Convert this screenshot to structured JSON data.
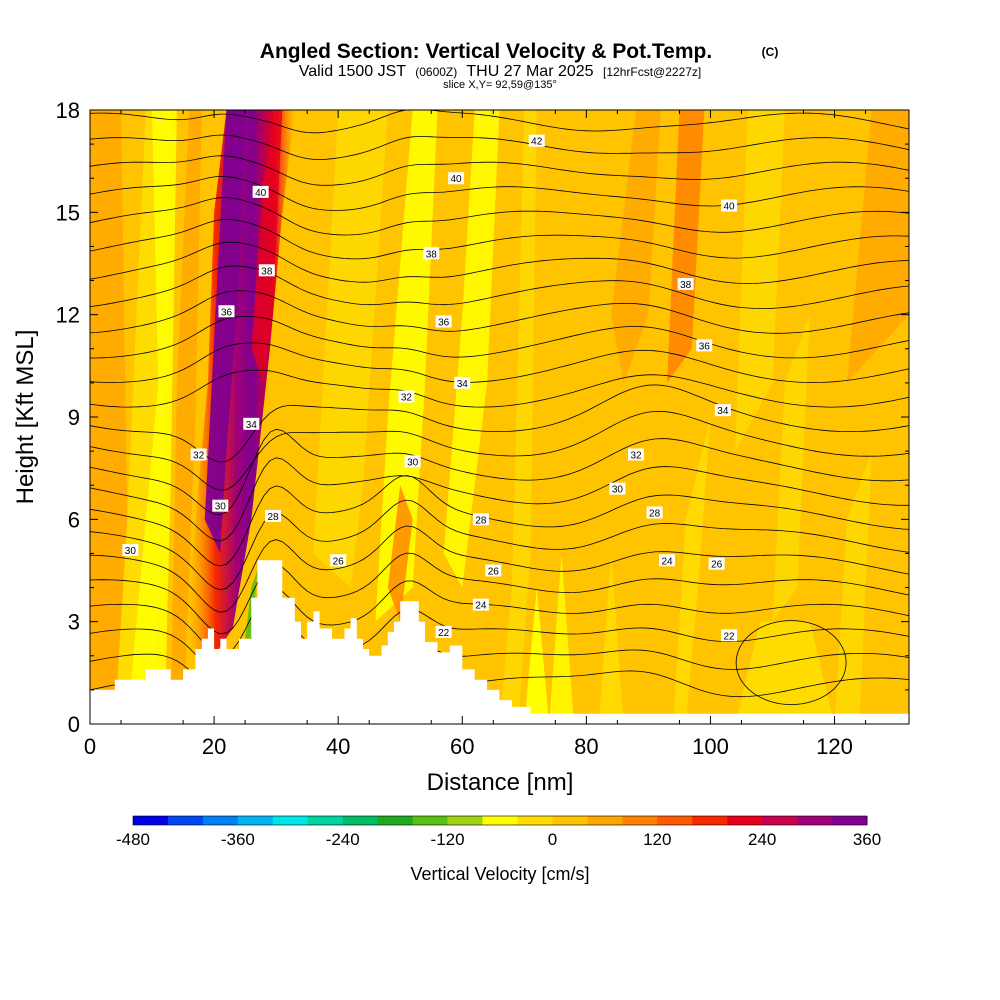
{
  "chart_data": {
    "type": "heatmap",
    "title": "Angled Section: Vertical Velocity & Pot.Temp.",
    "title_unit": "(C)",
    "subtitle_parts": [
      "Valid 1500 JST",
      "(0600Z)",
      "THU 27 Mar 2025",
      "[12hrFcst@2227z]"
    ],
    "slice_label": "slice X,Y= 92,59@135°",
    "xlabel": "Distance [nm]",
    "ylabel": "Height [Kft MSL]",
    "xlim": [
      0,
      132
    ],
    "ylim": [
      0,
      18
    ],
    "x_ticks": [
      "0",
      "20",
      "40",
      "60",
      "80",
      "100",
      "120"
    ],
    "x_tick_values": [
      0,
      20,
      40,
      60,
      80,
      100,
      120
    ],
    "y_ticks": [
      "0",
      "3",
      "6",
      "9",
      "12",
      "15",
      "18"
    ],
    "y_tick_values": [
      0,
      3,
      6,
      9,
      12,
      15,
      18
    ],
    "colorbar": {
      "label": "Vertical Velocity [cm/s]",
      "tick_labels": [
        "-480",
        "-360",
        "-240",
        "-120",
        "0",
        "120",
        "240",
        "360"
      ],
      "tick_values": [
        -480,
        -360,
        -240,
        -120,
        0,
        120,
        240,
        360
      ],
      "colors": [
        "#0000e6",
        "#0046f0",
        "#0080f5",
        "#00b4f5",
        "#00e6e6",
        "#00d2a0",
        "#00bc64",
        "#1eaa1e",
        "#5ac014",
        "#a0d214",
        "#ffff00",
        "#ffdc00",
        "#ffc300",
        "#ffa500",
        "#ff8200",
        "#ff5a00",
        "#f52800",
        "#e6001e",
        "#c80050",
        "#a00078",
        "#800090"
      ]
    },
    "terrain_profile": [
      [
        0,
        1.0
      ],
      [
        4,
        1.0
      ],
      [
        4,
        1.3
      ],
      [
        9,
        1.3
      ],
      [
        9,
        1.6
      ],
      [
        13,
        1.6
      ],
      [
        13,
        1.3
      ],
      [
        15,
        1.3
      ],
      [
        15,
        1.6
      ],
      [
        17,
        1.6
      ],
      [
        17,
        2.2
      ],
      [
        18,
        2.2
      ],
      [
        18,
        2.5
      ],
      [
        19,
        2.5
      ],
      [
        19,
        2.8
      ],
      [
        20,
        2.8
      ],
      [
        20,
        2.2
      ],
      [
        21,
        2.2
      ],
      [
        21,
        2.5
      ],
      [
        22,
        2.5
      ],
      [
        22,
        2.2
      ],
      [
        24,
        2.2
      ],
      [
        24,
        2.5
      ],
      [
        26,
        2.5
      ],
      [
        26,
        3.7
      ],
      [
        27,
        3.7
      ],
      [
        27,
        4.8
      ],
      [
        31,
        4.8
      ],
      [
        31,
        3.7
      ],
      [
        33,
        3.7
      ],
      [
        33,
        3.0
      ],
      [
        34,
        3.0
      ],
      [
        34,
        2.5
      ],
      [
        35,
        2.5
      ],
      [
        35,
        3.0
      ],
      [
        36,
        3.0
      ],
      [
        36,
        3.3
      ],
      [
        37,
        3.3
      ],
      [
        37,
        2.8
      ],
      [
        39,
        2.8
      ],
      [
        39,
        2.5
      ],
      [
        41,
        2.5
      ],
      [
        41,
        2.8
      ],
      [
        42,
        2.8
      ],
      [
        42,
        3.1
      ],
      [
        43,
        3.1
      ],
      [
        43,
        2.5
      ],
      [
        44,
        2.5
      ],
      [
        44,
        2.2
      ],
      [
        45,
        2.2
      ],
      [
        45,
        2.0
      ],
      [
        47,
        2.0
      ],
      [
        47,
        2.3
      ],
      [
        48,
        2.3
      ],
      [
        48,
        2.7
      ],
      [
        49,
        2.7
      ],
      [
        49,
        3.0
      ],
      [
        50,
        3.0
      ],
      [
        50,
        3.6
      ],
      [
        53,
        3.6
      ],
      [
        53,
        3.0
      ],
      [
        54,
        3.0
      ],
      [
        54,
        2.4
      ],
      [
        56,
        2.4
      ],
      [
        56,
        2.1
      ],
      [
        58,
        2.1
      ],
      [
        58,
        2.3
      ],
      [
        60,
        2.3
      ],
      [
        60,
        1.6
      ],
      [
        62,
        1.6
      ],
      [
        62,
        1.3
      ],
      [
        64,
        1.3
      ],
      [
        64,
        1.0
      ],
      [
        66,
        1.0
      ],
      [
        66,
        0.7
      ],
      [
        68,
        0.7
      ],
      [
        68,
        0.5
      ],
      [
        71,
        0.5
      ],
      [
        71,
        0.3
      ],
      [
        132,
        0.3
      ]
    ],
    "isentrope_labels": [
      {
        "text": "42",
        "x": 72,
        "y": 17.1
      },
      {
        "text": "40",
        "x": 59,
        "y": 16.0
      },
      {
        "text": "40",
        "x": 103,
        "y": 15.2
      },
      {
        "text": "40",
        "x": 27.5,
        "y": 15.6
      },
      {
        "text": "38",
        "x": 55,
        "y": 13.8
      },
      {
        "text": "38",
        "x": 28.5,
        "y": 13.3
      },
      {
        "text": "38",
        "x": 96,
        "y": 12.9
      },
      {
        "text": "36",
        "x": 22,
        "y": 12.1
      },
      {
        "text": "36",
        "x": 57,
        "y": 11.8
      },
      {
        "text": "36",
        "x": 99,
        "y": 11.1
      },
      {
        "text": "34",
        "x": 60,
        "y": 10.0
      },
      {
        "text": "34",
        "x": 26,
        "y": 8.8
      },
      {
        "text": "34",
        "x": 102,
        "y": 9.2
      },
      {
        "text": "32",
        "x": 51,
        "y": 9.6
      },
      {
        "text": "32",
        "x": 17.5,
        "y": 7.9
      },
      {
        "text": "32",
        "x": 88,
        "y": 7.9
      },
      {
        "text": "30",
        "x": 52,
        "y": 7.7
      },
      {
        "text": "30",
        "x": 85,
        "y": 6.9
      },
      {
        "text": "30",
        "x": 21,
        "y": 6.4
      },
      {
        "text": "30",
        "x": 6.5,
        "y": 5.1
      },
      {
        "text": "28",
        "x": 29.5,
        "y": 6.1
      },
      {
        "text": "28",
        "x": 63,
        "y": 6.0
      },
      {
        "text": "28",
        "x": 91,
        "y": 6.2
      },
      {
        "text": "26",
        "x": 40,
        "y": 4.8
      },
      {
        "text": "26",
        "x": 65,
        "y": 4.5
      },
      {
        "text": "26",
        "x": 101,
        "y": 4.7
      },
      {
        "text": "24",
        "x": 93,
        "y": 4.8
      },
      {
        "text": "24",
        "x": 63,
        "y": 3.5
      },
      {
        "text": "22",
        "x": 57,
        "y": 2.7
      },
      {
        "text": "22",
        "x": 103,
        "y": 2.6
      }
    ]
  }
}
